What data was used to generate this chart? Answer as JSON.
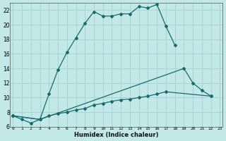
{
  "xlabel": "Humidex (Indice chaleur)",
  "background_color": "#c2e8e8",
  "grid_color": "#a8d4d4",
  "line_color": "#1a6b6b",
  "x_ticks": [
    0,
    1,
    2,
    3,
    4,
    5,
    6,
    7,
    8,
    9,
    10,
    11,
    12,
    13,
    14,
    15,
    16,
    17,
    18,
    19,
    20,
    21,
    22,
    23
  ],
  "y_ticks": [
    6,
    8,
    10,
    12,
    14,
    16,
    18,
    20,
    22
  ],
  "xlim": [
    -0.3,
    23.3
  ],
  "ylim": [
    6.0,
    23.0
  ],
  "series": [
    {
      "x": [
        0,
        1,
        2,
        3,
        4,
        5,
        6,
        7,
        8,
        9,
        10,
        11,
        12,
        13,
        14,
        15,
        16,
        17,
        18
      ],
      "y": [
        7.5,
        7.0,
        6.5,
        7.0,
        10.5,
        13.8,
        16.2,
        18.2,
        20.2,
        21.8,
        21.2,
        21.2,
        21.5,
        21.5,
        22.5,
        22.3,
        22.8,
        19.8,
        17.2
      ]
    },
    {
      "x": [
        0,
        3,
        19,
        20,
        21,
        22
      ],
      "y": [
        7.5,
        7.0,
        14.0,
        12.0,
        11.0,
        10.2
      ]
    },
    {
      "x": [
        0,
        3,
        4,
        5,
        6,
        7,
        8,
        9,
        10,
        11,
        12,
        13,
        14,
        15,
        16,
        17,
        22
      ],
      "y": [
        7.5,
        7.0,
        7.5,
        7.8,
        8.0,
        8.3,
        8.5,
        9.0,
        9.2,
        9.5,
        9.7,
        9.8,
        10.0,
        10.2,
        10.5,
        10.8,
        10.2
      ]
    }
  ]
}
